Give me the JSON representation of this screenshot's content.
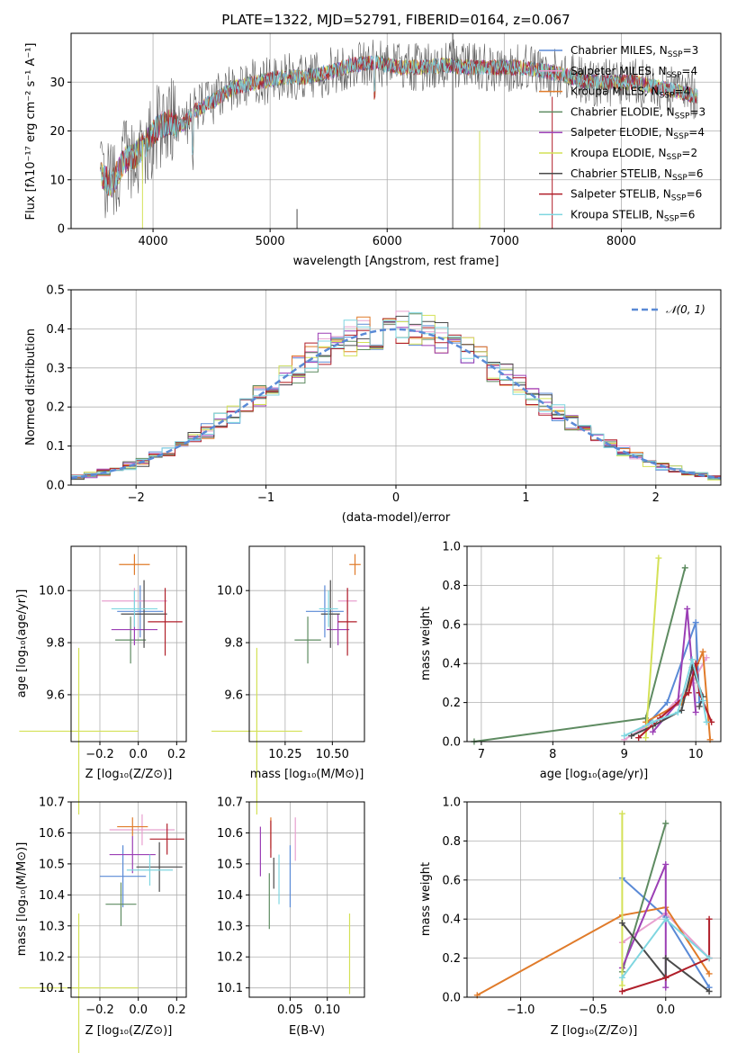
{
  "colors": {
    "c1": "#5a8ad6",
    "c2": "#e8a0cf",
    "c3": "#e07b2a",
    "c4": "#5e8b61",
    "c5": "#9b3fb5",
    "c6": "#d4e157",
    "c7": "#4a4a4a",
    "c8": "#b01f2a",
    "c9": "#7fd6e0",
    "grid": "#b0b0b0"
  },
  "chart_data": [
    {
      "id": "spectrum",
      "type": "line",
      "title": "PLATE=1322, MJD=52791, FIBERID=0164, z=0.067",
      "xlabel": "wavelength [Angstrom, rest frame]",
      "ylabel": "Flux [fλ10⁻¹⁷ erg cm⁻² s⁻¹ A⁻¹]",
      "xlim": [
        3300,
        8850
      ],
      "ylim": [
        0,
        40
      ],
      "xticks": [
        "4000",
        "5000",
        "6000",
        "7000",
        "8000"
      ],
      "yticks": [
        "0",
        "10",
        "20",
        "30"
      ],
      "legend_position": "top-right",
      "continuum": [
        [
          3550,
          11
        ],
        [
          3650,
          9
        ],
        [
          3750,
          14
        ],
        [
          3850,
          15
        ],
        [
          3950,
          18
        ],
        [
          4050,
          21
        ],
        [
          4150,
          22
        ],
        [
          4250,
          21
        ],
        [
          4350,
          24
        ],
        [
          4500,
          26
        ],
        [
          4700,
          29
        ],
        [
          4900,
          30
        ],
        [
          5100,
          31
        ],
        [
          5300,
          31
        ],
        [
          5500,
          32
        ],
        [
          5700,
          33.5
        ],
        [
          5900,
          34
        ],
        [
          6100,
          33
        ],
        [
          6300,
          33
        ],
        [
          6500,
          33.5
        ],
        [
          6700,
          33
        ],
        [
          6900,
          33
        ],
        [
          7100,
          33
        ],
        [
          7300,
          32.5
        ],
        [
          7500,
          31.5
        ],
        [
          7700,
          30
        ],
        [
          7900,
          30
        ],
        [
          8100,
          30
        ],
        [
          8300,
          29
        ],
        [
          8500,
          28
        ],
        [
          8650,
          27
        ]
      ],
      "series": [
        {
          "name": "Chabrier MILES, N$_{SSP}$=3",
          "label_main": "Chabrier MILES, N",
          "sub": "SSP",
          "label_tail": "=3",
          "color": "c1"
        },
        {
          "name": "Salpeter MILES, N$_{SSP}$=4",
          "label_main": "Salpeter MILES, N",
          "sub": "SSP",
          "label_tail": "=4",
          "color": "c2"
        },
        {
          "name": "Kroupa MILES, N$_{SSP}$=4",
          "label_main": "Kroupa MILES, N",
          "sub": "SSP",
          "label_tail": "=4",
          "color": "c3"
        },
        {
          "name": "Chabrier ELODIE, N$_{SSP}$=3",
          "label_main": "Chabrier ELODIE, N",
          "sub": "SSP",
          "label_tail": "=3",
          "color": "c4"
        },
        {
          "name": "Salpeter ELODIE, N$_{SSP}$=4",
          "label_main": "Salpeter ELODIE, N",
          "sub": "SSP",
          "label_tail": "=4",
          "color": "c5"
        },
        {
          "name": "Kroupa ELODIE, N$_{SSP}$=2",
          "label_main": "Kroupa ELODIE, N",
          "sub": "SSP",
          "label_tail": "=2",
          "color": "c6"
        },
        {
          "name": "Chabrier STELIB, N$_{SSP}$=6",
          "label_main": "Chabrier STELIB, N",
          "sub": "SSP",
          "label_tail": "=6",
          "color": "c7"
        },
        {
          "name": "Salpeter STELIB, N$_{SSP}$=6",
          "label_main": "Salpeter STELIB, N",
          "sub": "SSP",
          "label_tail": "=6",
          "color": "c8"
        },
        {
          "name": "Kroupa STELIB, N$_{SSP}$=6",
          "label_main": "Kroupa STELIB, N",
          "sub": "SSP",
          "label_tail": "=6",
          "color": "c9"
        }
      ]
    },
    {
      "id": "residuals",
      "type": "histogram",
      "xlabel": "(data-model)/error",
      "ylabel": "Normed distribution",
      "xlim": [
        -2.5,
        2.5
      ],
      "ylim": [
        0,
        0.5
      ],
      "xticks": [
        "−2",
        "−1",
        "0",
        "1",
        "2"
      ],
      "yticks": [
        "0.0",
        "0.1",
        "0.2",
        "0.3",
        "0.4",
        "0.5"
      ],
      "bin_width": 0.1,
      "reference": {
        "label": "𝒩(0, 1)",
        "mean": 0,
        "sigma": 1,
        "color": "c1"
      },
      "legend_position": "top-right"
    },
    {
      "id": "age_vs_Z",
      "type": "scatter",
      "xlabel": "Z [log₁₀(Z/Z⊙)]",
      "ylabel": "age  [log₁₀(age/yr)]",
      "xlim": [
        -0.35,
        0.25
      ],
      "ylim": [
        9.42,
        10.17
      ],
      "xticks": [
        "−0.2",
        "0.0",
        "0.2"
      ],
      "yticks": [
        "9.6",
        "9.8",
        "10.0"
      ],
      "points": [
        {
          "color": "c1",
          "x": 0.01,
          "xerr": 0.12,
          "y": 9.92,
          "yerr": 0.1
        },
        {
          "color": "c2",
          "x": -0.02,
          "xerr": 0.17,
          "y": 9.96,
          "yerr": 0.05
        },
        {
          "color": "c3",
          "x": -0.02,
          "xerr": 0.08,
          "y": 10.1,
          "yerr": 0.04
        },
        {
          "color": "c4",
          "x": -0.04,
          "xerr": 0.08,
          "y": 9.81,
          "yerr": 0.09
        },
        {
          "color": "c5",
          "x": -0.02,
          "xerr": 0.12,
          "y": 9.85,
          "yerr": 0.06
        },
        {
          "color": "c6",
          "x": -0.31,
          "xerr": 0.31,
          "y": 9.46,
          "yerr": 0.32
        },
        {
          "color": "c7",
          "x": 0.03,
          "xerr": 0.12,
          "y": 9.91,
          "yerr": 0.13
        },
        {
          "color": "c8",
          "x": 0.14,
          "xerr": 0.09,
          "y": 9.88,
          "yerr": 0.13
        },
        {
          "color": "c9",
          "x": -0.02,
          "xerr": 0.12,
          "y": 9.93,
          "yerr": 0.07
        }
      ]
    },
    {
      "id": "age_vs_mass",
      "type": "scatter",
      "xlabel": "mass [log₁₀(M/M⊙)]",
      "ylabel": "",
      "xlim": [
        10.06,
        10.67
      ],
      "ylim": [
        9.42,
        10.17
      ],
      "xticks": [
        "10.25",
        "10.50"
      ],
      "yticks": [
        "9.6",
        "9.8",
        "10.0"
      ],
      "points": [
        {
          "color": "c1",
          "x": 10.46,
          "xerr": 0.1,
          "y": 9.92,
          "yerr": 0.1
        },
        {
          "color": "c2",
          "x": 10.58,
          "xerr": 0.05,
          "y": 9.96,
          "yerr": 0.05
        },
        {
          "color": "c3",
          "x": 10.62,
          "xerr": 0.03,
          "y": 10.1,
          "yerr": 0.04
        },
        {
          "color": "c4",
          "x": 10.37,
          "xerr": 0.07,
          "y": 9.81,
          "yerr": 0.09
        },
        {
          "color": "c5",
          "x": 10.53,
          "xerr": 0.06,
          "y": 9.85,
          "yerr": 0.06
        },
        {
          "color": "c6",
          "x": 10.1,
          "xerr": 0.24,
          "y": 9.46,
          "yerr": 0.32
        },
        {
          "color": "c7",
          "x": 10.49,
          "xerr": 0.05,
          "y": 9.91,
          "yerr": 0.13
        },
        {
          "color": "c8",
          "x": 10.58,
          "xerr": 0.05,
          "y": 9.88,
          "yerr": 0.13
        },
        {
          "color": "c9",
          "x": 10.48,
          "xerr": 0.05,
          "y": 9.93,
          "yerr": 0.07
        }
      ]
    },
    {
      "id": "weight_vs_age",
      "type": "line",
      "xlabel": "age  [log₁₀(age/yr)]",
      "ylabel": "mass weight",
      "xlim": [
        6.8,
        10.35
      ],
      "ylim": [
        0,
        1
      ],
      "xticks": [
        "7",
        "8",
        "9",
        "10"
      ],
      "yticks": [
        "0.0",
        "0.2",
        "0.4",
        "0.6",
        "0.8",
        "1.0"
      ],
      "series": [
        {
          "color": "c1",
          "points": [
            [
              9.3,
              0.08
            ],
            [
              9.6,
              0.2
            ],
            [
              10.0,
              0.61
            ],
            [
              10.05,
              0.2
            ]
          ]
        },
        {
          "color": "c2",
          "points": [
            [
              9.0,
              0.01
            ],
            [
              9.5,
              0.12
            ],
            [
              9.95,
              0.3
            ],
            [
              10.15,
              0.43
            ]
          ]
        },
        {
          "color": "c3",
          "points": [
            [
              9.3,
              0.1
            ],
            [
              9.8,
              0.2
            ],
            [
              10.1,
              0.46
            ],
            [
              10.2,
              0.01
            ]
          ]
        },
        {
          "color": "c4",
          "points": [
            [
              6.9,
              0.0
            ],
            [
              9.3,
              0.12
            ],
            [
              9.85,
              0.89
            ]
          ]
        },
        {
          "color": "c5",
          "points": [
            [
              9.4,
              0.05
            ],
            [
              9.75,
              0.2
            ],
            [
              9.88,
              0.68
            ],
            [
              10.0,
              0.15
            ]
          ]
        },
        {
          "color": "c6",
          "points": [
            [
              9.3,
              0.02
            ],
            [
              9.48,
              0.94
            ]
          ]
        },
        {
          "color": "c7",
          "points": [
            [
              9.1,
              0.03
            ],
            [
              9.4,
              0.08
            ],
            [
              9.8,
              0.16
            ],
            [
              9.95,
              0.38
            ],
            [
              10.1,
              0.23
            ],
            [
              10.05,
              0.18
            ]
          ]
        },
        {
          "color": "c8",
          "points": [
            [
              9.2,
              0.02
            ],
            [
              9.5,
              0.12
            ],
            [
              9.9,
              0.25
            ],
            [
              10.0,
              0.4
            ],
            [
              10.05,
              0.25
            ],
            [
              10.22,
              0.1
            ]
          ]
        },
        {
          "color": "c9",
          "points": [
            [
              9.0,
              0.03
            ],
            [
              9.4,
              0.1
            ],
            [
              9.75,
              0.15
            ],
            [
              9.95,
              0.42
            ],
            [
              10.1,
              0.21
            ],
            [
              10.15,
              0.1
            ]
          ]
        }
      ]
    },
    {
      "id": "mass_vs_Z",
      "type": "scatter",
      "xlabel": "Z [log₁₀(Z/Z⊙)]",
      "ylabel": "mass [log₁₀(M/M⊙)]",
      "xlim": [
        -0.35,
        0.25
      ],
      "ylim": [
        10.07,
        10.7
      ],
      "xticks": [
        "−0.2",
        "0.0",
        "0.2"
      ],
      "yticks": [
        "10.1",
        "10.2",
        "10.3",
        "10.4",
        "10.5",
        "10.6",
        "10.7"
      ],
      "points": [
        {
          "color": "c1",
          "x": -0.08,
          "xerr": 0.12,
          "y": 10.46,
          "yerr": 0.1
        },
        {
          "color": "c2",
          "x": 0.02,
          "xerr": 0.17,
          "y": 10.61,
          "yerr": 0.05
        },
        {
          "color": "c3",
          "x": -0.03,
          "xerr": 0.08,
          "y": 10.62,
          "yerr": 0.03
        },
        {
          "color": "c4",
          "x": -0.09,
          "xerr": 0.08,
          "y": 10.37,
          "yerr": 0.07
        },
        {
          "color": "c5",
          "x": -0.03,
          "xerr": 0.12,
          "y": 10.53,
          "yerr": 0.06
        },
        {
          "color": "c6",
          "x": -0.31,
          "xerr": 0.31,
          "y": 10.1,
          "yerr": 0.24
        },
        {
          "color": "c7",
          "x": 0.11,
          "xerr": 0.12,
          "y": 10.49,
          "yerr": 0.08
        },
        {
          "color": "c8",
          "x": 0.15,
          "xerr": 0.09,
          "y": 10.58,
          "yerr": 0.05
        },
        {
          "color": "c9",
          "x": 0.06,
          "xerr": 0.12,
          "y": 10.48,
          "yerr": 0.05
        }
      ]
    },
    {
      "id": "mass_vs_ebv",
      "type": "scatter",
      "xlabel": "E(B-V)",
      "ylabel": "",
      "xlim": [
        -0.005,
        0.15
      ],
      "ylim": [
        10.07,
        10.7
      ],
      "xticks": [
        "0.05",
        "0.10"
      ],
      "yticks": [
        "10.1",
        "10.2",
        "10.3",
        "10.4",
        "10.5",
        "10.6",
        "10.7"
      ],
      "points": [
        {
          "color": "c1",
          "x": 0.05,
          "xerr": 0,
          "y": 10.46,
          "yerr": 0.1
        },
        {
          "color": "c2",
          "x": 0.057,
          "xerr": 0,
          "y": 10.58,
          "yerr": 0.07
        },
        {
          "color": "c3",
          "x": 0.024,
          "xerr": 0,
          "y": 10.6,
          "yerr": 0.05
        },
        {
          "color": "c4",
          "x": 0.022,
          "xerr": 0,
          "y": 10.38,
          "yerr": 0.09
        },
        {
          "color": "c5",
          "x": 0.01,
          "xerr": 0,
          "y": 10.54,
          "yerr": 0.08
        },
        {
          "color": "c6",
          "x": 0.13,
          "xerr": 0,
          "y": 10.21,
          "yerr": 0.13
        },
        {
          "color": "c7",
          "x": 0.028,
          "xerr": 0,
          "y": 10.47,
          "yerr": 0.05
        },
        {
          "color": "c8",
          "x": 0.024,
          "xerr": 0,
          "y": 10.58,
          "yerr": 0.06
        },
        {
          "color": "c9",
          "x": 0.035,
          "xerr": 0,
          "y": 10.45,
          "yerr": 0.08
        }
      ]
    },
    {
      "id": "weight_vs_Z",
      "type": "line",
      "xlabel": "Z [log₁₀(Z/Z⊙)]",
      "ylabel": "mass weight",
      "xlim": [
        -1.37,
        0.38
      ],
      "ylim": [
        0,
        1
      ],
      "xticks": [
        "−1.0",
        "−0.5",
        "0.0"
      ],
      "yticks": [
        "0.0",
        "0.2",
        "0.4",
        "0.6",
        "0.8",
        "1.0"
      ],
      "series": [
        {
          "color": "c1",
          "points": [
            [
              -0.3,
              0.61
            ],
            [
              0.0,
              0.41
            ],
            [
              0.3,
              0.05
            ]
          ]
        },
        {
          "color": "c2",
          "points": [
            [
              -0.3,
              0.28
            ],
            [
              0.0,
              0.43
            ],
            [
              0.3,
              0.2
            ]
          ]
        },
        {
          "color": "c3",
          "points": [
            [
              -1.3,
              0.01
            ],
            [
              -0.3,
              0.42
            ],
            [
              0.0,
              0.46
            ],
            [
              0.3,
              0.12
            ]
          ]
        },
        {
          "color": "c4",
          "points": [
            [
              -0.3,
              0.13
            ],
            [
              0.0,
              0.89
            ]
          ]
        },
        {
          "color": "c5",
          "points": [
            [
              -0.3,
              0.15
            ],
            [
              0.0,
              0.68
            ],
            [
              0.0,
              0.05
            ]
          ]
        },
        {
          "color": "c6",
          "points": [
            [
              -0.3,
              0.94
            ],
            [
              -0.3,
              0.06
            ]
          ]
        },
        {
          "color": "c7",
          "points": [
            [
              -0.3,
              0.38
            ],
            [
              0.0,
              0.1
            ],
            [
              0.0,
              0.2
            ],
            [
              0.3,
              0.03
            ]
          ]
        },
        {
          "color": "c8",
          "points": [
            [
              -0.3,
              0.03
            ],
            [
              0.0,
              0.1
            ],
            [
              0.3,
              0.2
            ],
            [
              0.3,
              0.4
            ]
          ]
        },
        {
          "color": "c9",
          "points": [
            [
              -0.3,
              0.1
            ],
            [
              0.0,
              0.4
            ],
            [
              0.3,
              0.2
            ]
          ]
        }
      ]
    }
  ]
}
